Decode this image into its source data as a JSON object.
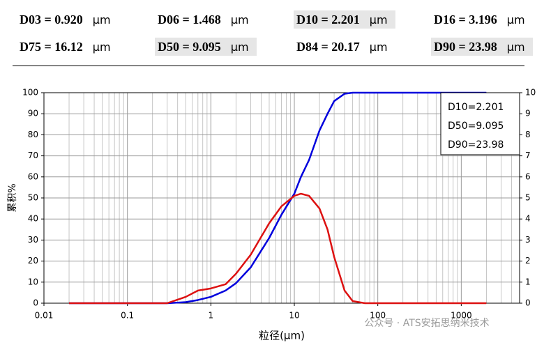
{
  "header": {
    "items": [
      {
        "text": "D03 = 0.920",
        "unit": "μm",
        "highlight": false
      },
      {
        "text": "D06 = 1.468",
        "unit": "μm",
        "highlight": false
      },
      {
        "text": "D10 = 2.201",
        "unit": "μm",
        "highlight": true
      },
      {
        "text": "D16 = 3.196",
        "unit": "μm",
        "highlight": false
      },
      {
        "text": "D75 = 16.12",
        "unit": "μm",
        "highlight": false
      },
      {
        "text": "D50 = 9.095",
        "unit": "μm",
        "highlight": true
      },
      {
        "text": "D84 = 20.17",
        "unit": "μm",
        "highlight": false
      },
      {
        "text": "D90 = 23.98",
        "unit": "μm",
        "highlight": true
      }
    ]
  },
  "chart_data": {
    "type": "line",
    "xlabel": "粒径(μm)",
    "ylabel": "累积%",
    "watermark": "公众号 · ATS安拓思纳米技术",
    "annotations": [
      "D10=2.201",
      "D50=9.095",
      "D90=23.98"
    ],
    "xscale": "log",
    "grid": true,
    "xlim": [
      0.01,
      5000
    ],
    "xticks": [
      0.01,
      0.1,
      1,
      10,
      100,
      1000
    ],
    "x_minor_grid": [
      0.02,
      0.03,
      0.04,
      0.05,
      0.06,
      0.07,
      0.08,
      0.09,
      0.2,
      0.3,
      0.4,
      0.5,
      0.6,
      0.7,
      0.8,
      0.9,
      2,
      3,
      4,
      5,
      6,
      7,
      8,
      9,
      20,
      30,
      40,
      50,
      60,
      70,
      80,
      90,
      200,
      300,
      400,
      500,
      600,
      700,
      800,
      900,
      2000,
      3000,
      4000
    ],
    "ylim": [
      0,
      100
    ],
    "yticks": [
      0,
      10,
      20,
      30,
      40,
      50,
      60,
      70,
      80,
      90,
      100
    ],
    "y2lim": [
      0,
      10
    ],
    "y2ticks": [
      0,
      1,
      2,
      3,
      4,
      5,
      6,
      7,
      8,
      9,
      10
    ],
    "x": [
      0.02,
      0.3,
      0.5,
      0.7,
      1,
      1.5,
      2,
      3,
      5,
      7,
      10,
      12,
      15,
      20,
      25,
      30,
      40,
      50,
      70,
      2000
    ],
    "series": [
      {
        "color": "#0000dd",
        "values": [
          0,
          0,
          0.5,
          1.5,
          3,
          6,
          9.5,
          17,
          31,
          42,
          52,
          60,
          68,
          82,
          90,
          96,
          99.5,
          100,
          100,
          100
        ]
      },
      {
        "color": "#dd1111",
        "axis": "y2",
        "values": [
          0,
          0,
          0.3,
          0.6,
          0.7,
          0.9,
          1.4,
          2.3,
          3.8,
          4.6,
          5.1,
          5.2,
          5.1,
          4.5,
          3.5,
          2.2,
          0.6,
          0.1,
          0,
          0
        ]
      }
    ]
  }
}
